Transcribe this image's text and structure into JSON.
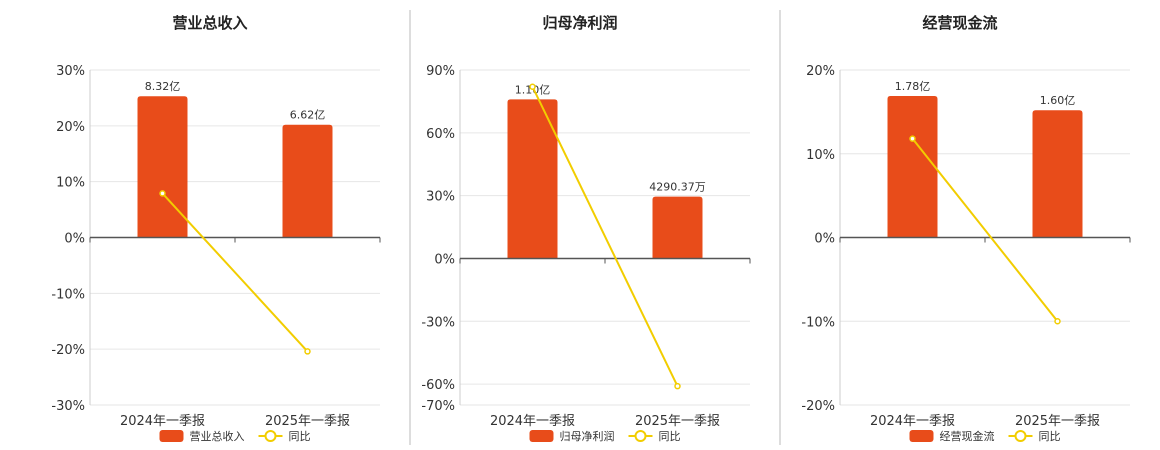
{
  "colors": {
    "bar": "#E84C1A",
    "line": "#F2CD00",
    "grid": "#E6E6E6",
    "axis": "#555555",
    "divider": "#BBBBBB"
  },
  "chart_data": [
    {
      "type": "bar",
      "title": "营业总收入",
      "categories": [
        "2024年一季报",
        "2025年一季报"
      ],
      "ylim": [
        -30,
        30
      ],
      "yticks": [
        30,
        20,
        10,
        0,
        -10,
        -20,
        -30
      ],
      "ytick_labels": [
        "30%",
        "20%",
        "10%",
        "0%",
        "-10%",
        "-20%",
        "-30%"
      ],
      "series": [
        {
          "name": "营业总收入",
          "kind": "bar",
          "values": [
            25.3,
            20.2
          ],
          "labels": [
            "8.32亿",
            "6.62亿"
          ]
        },
        {
          "name": "同比",
          "kind": "line",
          "values": [
            7.9,
            -20.4
          ]
        }
      ],
      "legend": "bottom-center",
      "grid": true
    },
    {
      "type": "bar",
      "title": "归母净利润",
      "categories": [
        "2024年一季报",
        "2025年一季报"
      ],
      "ylim": [
        -70,
        90
      ],
      "yticks": [
        90,
        60,
        30,
        0,
        -30,
        -60,
        -70
      ],
      "ytick_labels": [
        "90%",
        "60%",
        "30%",
        "0%",
        "-30%",
        "-60%",
        "-70%"
      ],
      "series": [
        {
          "name": "归母净利润",
          "kind": "bar",
          "values": [
            76,
            29.5
          ],
          "labels": [
            "1.10亿",
            "4290.37万"
          ]
        },
        {
          "name": "同比",
          "kind": "line",
          "values": [
            82,
            -61
          ]
        }
      ],
      "legend": "bottom-center",
      "grid": true
    },
    {
      "type": "bar",
      "title": "经营现金流",
      "categories": [
        "2024年一季报",
        "2025年一季报"
      ],
      "ylim": [
        -20,
        20
      ],
      "yticks": [
        20,
        10,
        0,
        -10,
        -20
      ],
      "ytick_labels": [
        "20%",
        "10%",
        "0%",
        "-10%",
        "-20%"
      ],
      "series": [
        {
          "name": "经营现金流",
          "kind": "bar",
          "values": [
            16.9,
            15.2
          ],
          "labels": [
            "1.78亿",
            "1.60亿"
          ]
        },
        {
          "name": "同比",
          "kind": "line",
          "values": [
            11.8,
            -10
          ]
        }
      ],
      "legend": "bottom-center",
      "grid": true
    }
  ]
}
